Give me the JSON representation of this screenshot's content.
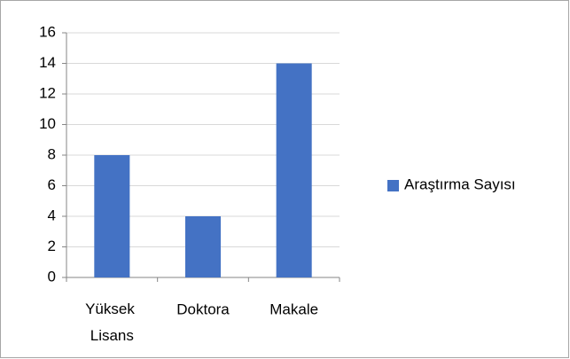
{
  "chart_data": {
    "type": "bar",
    "categories": [
      "Yüksek Lisans",
      "Doktora",
      "Makale"
    ],
    "series": [
      {
        "name": "Araştırma Sayısı",
        "color": "#4472c4",
        "values": [
          8,
          4,
          14
        ]
      }
    ],
    "ylim": [
      0,
      16
    ],
    "yticks": [
      0,
      2,
      4,
      6,
      8,
      10,
      12,
      14,
      16
    ],
    "grid": true,
    "legend": "right"
  }
}
